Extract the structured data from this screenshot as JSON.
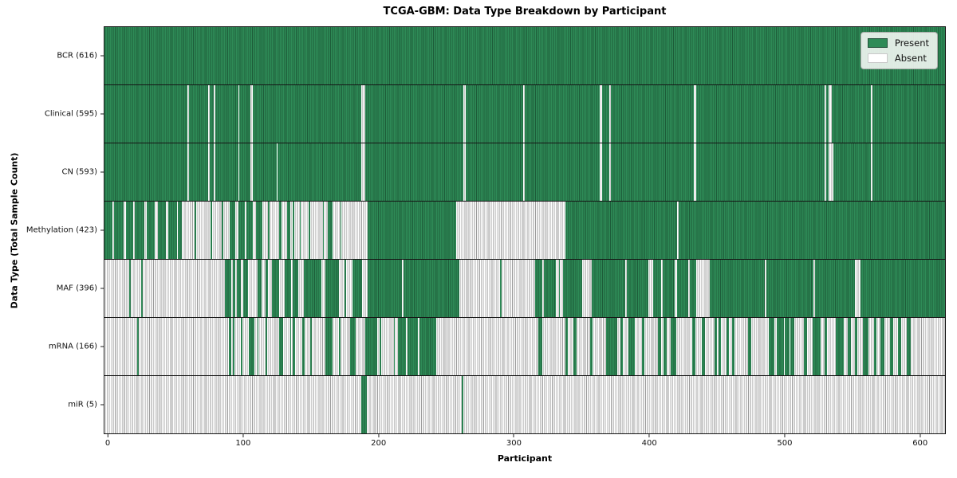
{
  "chart_data": {
    "type": "heatmap",
    "title": "TCGA-GBM: Data Type Breakdown by Participant",
    "xlabel": "Participant",
    "ylabel": "Data Type (Total Sample Count)",
    "x_ticks": [
      0,
      100,
      200,
      300,
      400,
      500,
      600
    ],
    "x_axis_max": 622,
    "x_tick_offset": 3,
    "n_participants": 616,
    "grid": false,
    "legend_position": "upper right",
    "colors": {
      "present": "#2e8b57",
      "present_edge": "#1d5c39",
      "absent": "#ffffff",
      "absent_edge": "#9a9a9a"
    },
    "legend": [
      {
        "label": "Present",
        "color": "#2e8b57"
      },
      {
        "label": "Absent",
        "color": "#ffffff"
      }
    ],
    "rows": [
      {
        "name": "bcr",
        "label": "BCR (616)",
        "present_count": 616,
        "runs": [
          [
            616,
            1
          ]
        ]
      },
      {
        "name": "clinical",
        "label": "Clinical (595)",
        "present_count": 595,
        "runs": [
          [
            61,
            1
          ],
          [
            1,
            0
          ],
          [
            14,
            1
          ],
          [
            1,
            0
          ],
          [
            3,
            1
          ],
          [
            1,
            0
          ],
          [
            17,
            1
          ],
          [
            1,
            0
          ],
          [
            8,
            1
          ],
          [
            2,
            0
          ],
          [
            79,
            1
          ],
          [
            3,
            0
          ],
          [
            72,
            1
          ],
          [
            2,
            0
          ],
          [
            42,
            1
          ],
          [
            1,
            0
          ],
          [
            55,
            1
          ],
          [
            2,
            0
          ],
          [
            5,
            1
          ],
          [
            1,
            0
          ],
          [
            61,
            1
          ],
          [
            2,
            0
          ],
          [
            94,
            1
          ],
          [
            1,
            0
          ],
          [
            2,
            1
          ],
          [
            2,
            0
          ],
          [
            29,
            1
          ],
          [
            1,
            0
          ],
          [
            53,
            1
          ]
        ]
      },
      {
        "name": "cn",
        "label": "CN (593)",
        "present_count": 593,
        "runs": [
          [
            61,
            1
          ],
          [
            1,
            0
          ],
          [
            14,
            1
          ],
          [
            1,
            0
          ],
          [
            3,
            1
          ],
          [
            1,
            0
          ],
          [
            17,
            1
          ],
          [
            1,
            0
          ],
          [
            8,
            1
          ],
          [
            2,
            0
          ],
          [
            17,
            1
          ],
          [
            1,
            0
          ],
          [
            61,
            1
          ],
          [
            3,
            0
          ],
          [
            72,
            1
          ],
          [
            2,
            0
          ],
          [
            42,
            1
          ],
          [
            1,
            0
          ],
          [
            55,
            1
          ],
          [
            2,
            0
          ],
          [
            5,
            1
          ],
          [
            1,
            0
          ],
          [
            61,
            1
          ],
          [
            2,
            0
          ],
          [
            94,
            1
          ],
          [
            1,
            0
          ],
          [
            2,
            1
          ],
          [
            3,
            0
          ],
          [
            28,
            1
          ],
          [
            1,
            0
          ],
          [
            53,
            1
          ]
        ]
      },
      {
        "name": "methylation",
        "label": "Methylation (423)",
        "present_count": 423,
        "runs": [
          [
            6,
            1
          ],
          [
            1,
            0
          ],
          [
            7,
            1
          ],
          [
            2,
            0
          ],
          [
            5,
            1
          ],
          [
            1,
            0
          ],
          [
            7,
            1
          ],
          [
            2,
            0
          ],
          [
            6,
            1
          ],
          [
            2,
            0
          ],
          [
            6,
            1
          ],
          [
            2,
            0
          ],
          [
            6,
            1
          ],
          [
            1,
            0
          ],
          [
            3,
            1
          ],
          [
            9,
            0
          ],
          [
            1,
            1
          ],
          [
            11,
            0
          ],
          [
            1,
            1
          ],
          [
            7,
            0
          ],
          [
            1,
            1
          ],
          [
            5,
            0
          ],
          [
            4,
            1
          ],
          [
            2,
            0
          ],
          [
            5,
            1
          ],
          [
            1,
            0
          ],
          [
            5,
            1
          ],
          [
            2,
            0
          ],
          [
            5,
            1
          ],
          [
            4,
            0
          ],
          [
            1,
            1
          ],
          [
            7,
            0
          ],
          [
            2,
            1
          ],
          [
            4,
            0
          ],
          [
            2,
            1
          ],
          [
            2,
            0
          ],
          [
            1,
            1
          ],
          [
            4,
            0
          ],
          [
            1,
            1
          ],
          [
            6,
            0
          ],
          [
            1,
            1
          ],
          [
            9,
            0
          ],
          [
            1,
            1
          ],
          [
            3,
            0
          ],
          [
            3,
            1
          ],
          [
            6,
            0
          ],
          [
            1,
            1
          ],
          [
            19,
            0
          ],
          [
            65,
            1
          ],
          [
            80,
            0
          ],
          [
            82,
            1
          ],
          [
            1,
            0
          ],
          [
            195,
            1
          ]
        ]
      },
      {
        "name": "maf",
        "label": "MAF (396)",
        "present_count": 396,
        "runs": [
          [
            18,
            0
          ],
          [
            1,
            1
          ],
          [
            8,
            0
          ],
          [
            1,
            1
          ],
          [
            60,
            0
          ],
          [
            5,
            1
          ],
          [
            1,
            0
          ],
          [
            2,
            1
          ],
          [
            1,
            0
          ],
          [
            3,
            1
          ],
          [
            2,
            0
          ],
          [
            3,
            1
          ],
          [
            7,
            0
          ],
          [
            3,
            1
          ],
          [
            3,
            0
          ],
          [
            2,
            1
          ],
          [
            3,
            0
          ],
          [
            5,
            1
          ],
          [
            4,
            0
          ],
          [
            5,
            1
          ],
          [
            1,
            0
          ],
          [
            4,
            1
          ],
          [
            4,
            0
          ],
          [
            13,
            1
          ],
          [
            3,
            0
          ],
          [
            10,
            1
          ],
          [
            4,
            0
          ],
          [
            1,
            1
          ],
          [
            5,
            0
          ],
          [
            7,
            1
          ],
          [
            4,
            0
          ],
          [
            25,
            1
          ],
          [
            1,
            0
          ],
          [
            41,
            1
          ],
          [
            30,
            0
          ],
          [
            1,
            1
          ],
          [
            25,
            0
          ],
          [
            5,
            1
          ],
          [
            1,
            0
          ],
          [
            9,
            1
          ],
          [
            2,
            0
          ],
          [
            1,
            1
          ],
          [
            2,
            0
          ],
          [
            14,
            1
          ],
          [
            7,
            0
          ],
          [
            25,
            1
          ],
          [
            1,
            0
          ],
          [
            16,
            1
          ],
          [
            3,
            0
          ],
          [
            6,
            1
          ],
          [
            1,
            0
          ],
          [
            9,
            1
          ],
          [
            2,
            0
          ],
          [
            8,
            1
          ],
          [
            1,
            0
          ],
          [
            5,
            1
          ],
          [
            10,
            0
          ],
          [
            40,
            1
          ],
          [
            1,
            0
          ],
          [
            35,
            1
          ],
          [
            1,
            0
          ],
          [
            29,
            1
          ],
          [
            4,
            0
          ],
          [
            62,
            1
          ]
        ]
      },
      {
        "name": "mrna",
        "label": "mRNA (166)",
        "present_count": 166,
        "runs": [
          [
            24,
            0
          ],
          [
            1,
            1
          ],
          [
            66,
            0
          ],
          [
            2,
            1
          ],
          [
            1,
            0
          ],
          [
            1,
            1
          ],
          [
            5,
            0
          ],
          [
            1,
            1
          ],
          [
            5,
            0
          ],
          [
            4,
            1
          ],
          [
            2,
            0
          ],
          [
            1,
            1
          ],
          [
            5,
            0
          ],
          [
            1,
            1
          ],
          [
            9,
            0
          ],
          [
            3,
            1
          ],
          [
            5,
            0
          ],
          [
            1,
            1
          ],
          [
            1,
            0
          ],
          [
            2,
            1
          ],
          [
            5,
            0
          ],
          [
            2,
            1
          ],
          [
            4,
            0
          ],
          [
            1,
            1
          ],
          [
            10,
            0
          ],
          [
            5,
            1
          ],
          [
            5,
            0
          ],
          [
            1,
            1
          ],
          [
            7,
            0
          ],
          [
            4,
            1
          ],
          [
            7,
            0
          ],
          [
            9,
            1
          ],
          [
            2,
            0
          ],
          [
            1,
            1
          ],
          [
            9,
            0
          ],
          [
            1,
            1
          ],
          [
            2,
            0
          ],
          [
            6,
            1
          ],
          [
            1,
            0
          ],
          [
            8,
            1
          ],
          [
            1,
            0
          ],
          [
            12,
            1
          ],
          [
            75,
            0
          ],
          [
            3,
            1
          ],
          [
            17,
            0
          ],
          [
            2,
            1
          ],
          [
            4,
            0
          ],
          [
            2,
            1
          ],
          [
            10,
            0
          ],
          [
            2,
            1
          ],
          [
            10,
            0
          ],
          [
            8,
            1
          ],
          [
            2,
            0
          ],
          [
            2,
            1
          ],
          [
            4,
            0
          ],
          [
            5,
            1
          ],
          [
            5,
            0
          ],
          [
            2,
            1
          ],
          [
            10,
            0
          ],
          [
            2,
            1
          ],
          [
            2,
            0
          ],
          [
            2,
            1
          ],
          [
            3,
            0
          ],
          [
            4,
            1
          ],
          [
            12,
            0
          ],
          [
            2,
            1
          ],
          [
            5,
            0
          ],
          [
            2,
            1
          ],
          [
            7,
            0
          ],
          [
            2,
            1
          ],
          [
            1,
            0
          ],
          [
            2,
            1
          ],
          [
            4,
            0
          ],
          [
            2,
            1
          ],
          [
            2,
            0
          ],
          [
            2,
            1
          ],
          [
            10,
            0
          ],
          [
            2,
            1
          ],
          [
            13,
            0
          ],
          [
            4,
            1
          ],
          [
            2,
            0
          ],
          [
            5,
            1
          ],
          [
            1,
            0
          ],
          [
            3,
            1
          ],
          [
            1,
            0
          ],
          [
            3,
            1
          ],
          [
            7,
            0
          ],
          [
            2,
            1
          ],
          [
            4,
            0
          ],
          [
            6,
            1
          ],
          [
            3,
            0
          ],
          [
            2,
            1
          ],
          [
            6,
            0
          ],
          [
            6,
            1
          ],
          [
            3,
            0
          ],
          [
            2,
            1
          ],
          [
            3,
            0
          ],
          [
            2,
            1
          ],
          [
            4,
            0
          ],
          [
            4,
            1
          ],
          [
            4,
            0
          ],
          [
            2,
            1
          ],
          [
            3,
            0
          ],
          [
            3,
            1
          ],
          [
            4,
            0
          ],
          [
            2,
            1
          ],
          [
            4,
            0
          ],
          [
            2,
            1
          ],
          [
            4,
            0
          ],
          [
            3,
            1
          ],
          [
            25,
            0
          ]
        ]
      },
      {
        "name": "mir",
        "label": "miR (5)",
        "present_count": 5,
        "runs": [
          [
            188,
            0
          ],
          [
            4,
            1
          ],
          [
            70,
            0
          ],
          [
            1,
            1
          ],
          [
            353,
            0
          ]
        ]
      }
    ]
  }
}
